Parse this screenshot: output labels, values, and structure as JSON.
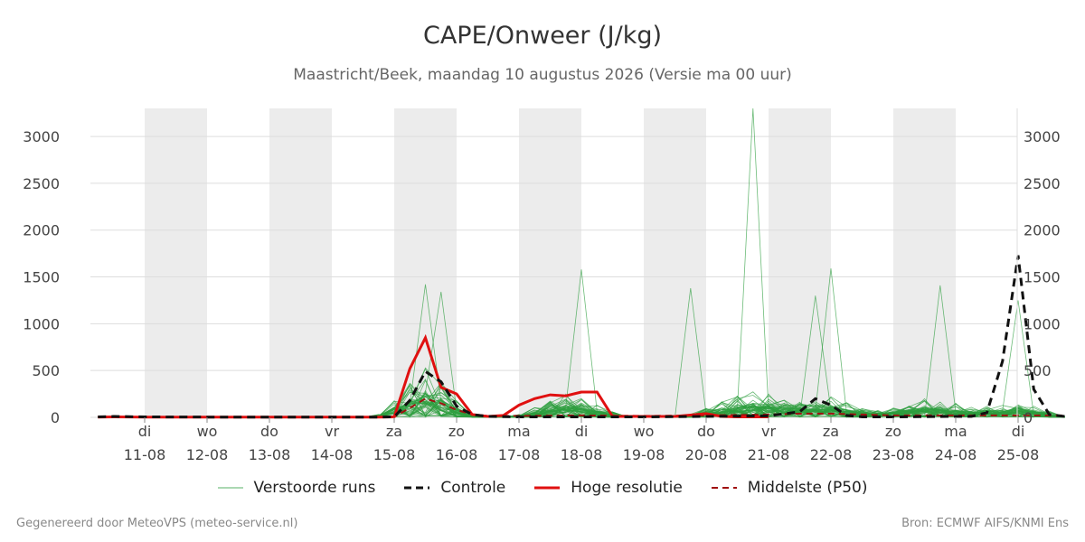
{
  "title": "CAPE/Onweer (J/kg)",
  "subtitle": "Maastricht/Beek, maandag 10 augustus 2026 (Versie ma 00 uur)",
  "footer": {
    "left": "Gegenereerd door MeteoVPS (meteo-service.nl)",
    "right": "Bron: ECMWF AIFS/KNMI Ens"
  },
  "legend": [
    {
      "label": "Verstoorde runs",
      "style": "thin-green"
    },
    {
      "label": "Controle",
      "style": "dashed-black"
    },
    {
      "label": "Hoge resolutie",
      "style": "solid-red"
    },
    {
      "label": "Middelste (P50)",
      "style": "dashed-darkred"
    }
  ],
  "colors": {
    "ensemble": "#2e9e3e",
    "control": "#111111",
    "hires": "#e01010",
    "median": "#a01010",
    "weekend_band": "#ececec",
    "grid": "#dddddd"
  },
  "chart_data": {
    "type": "line",
    "x_unit": "day offset from 10-08-2026 00 UTC",
    "xlim": [
      -0.7,
      14.9
    ],
    "ylim": [
      0,
      3300
    ],
    "yticks": [
      0,
      500,
      1000,
      1500,
      2000,
      2500,
      3000
    ],
    "x_ticks": [
      {
        "day": "di",
        "date": "11-08"
      },
      {
        "day": "wo",
        "date": "12-08"
      },
      {
        "day": "do",
        "date": "13-08"
      },
      {
        "day": "vr",
        "date": "14-08"
      },
      {
        "day": "za",
        "date": "15-08"
      },
      {
        "day": "zo",
        "date": "16-08"
      },
      {
        "day": "ma",
        "date": "17-08"
      },
      {
        "day": "di",
        "date": "18-08"
      },
      {
        "day": "wo",
        "date": "19-08"
      },
      {
        "day": "do",
        "date": "20-08"
      },
      {
        "day": "vr",
        "date": "21-08"
      },
      {
        "day": "za",
        "date": "22-08"
      },
      {
        "day": "zo",
        "date": "23-08"
      },
      {
        "day": "ma",
        "date": "24-08"
      },
      {
        "day": "di",
        "date": "25-08"
      }
    ],
    "shaded_bands": [
      [
        0,
        1
      ],
      [
        2,
        3
      ],
      [
        4,
        5
      ],
      [
        6,
        7
      ],
      [
        8,
        9
      ],
      [
        10,
        11
      ],
      [
        12,
        13
      ]
    ],
    "control": {
      "name": "Controle",
      "x": [
        -0.75,
        -0.5,
        0,
        1,
        2,
        3,
        3.5,
        3.75,
        4,
        4.25,
        4.5,
        4.75,
        5,
        5.25,
        5.5,
        6,
        7,
        8,
        9,
        10,
        10.5,
        10.75,
        11,
        11.25,
        11.5,
        12,
        13,
        13.25,
        13.5,
        13.75,
        14,
        14.25,
        14.5,
        14.75
      ],
      "y": [
        5,
        10,
        5,
        3,
        3,
        3,
        3,
        3,
        5,
        180,
        490,
        380,
        120,
        30,
        10,
        5,
        5,
        5,
        10,
        15,
        60,
        200,
        130,
        20,
        5,
        5,
        10,
        10,
        50,
        600,
        1730,
        300,
        30,
        10
      ]
    },
    "hires": {
      "name": "Hoge resolutie",
      "x": [
        -0.75,
        -0.5,
        0,
        1,
        2,
        3,
        3.5,
        3.75,
        4,
        4.25,
        4.5,
        4.75,
        5,
        5.25,
        5.5,
        5.75,
        6,
        6.25,
        6.5,
        6.75,
        7,
        7.25,
        7.5,
        7.75,
        8,
        8.5,
        9,
        9.25,
        9.5,
        10
      ],
      "y": [
        3,
        5,
        3,
        3,
        3,
        3,
        3,
        3,
        5,
        520,
        850,
        320,
        250,
        30,
        10,
        20,
        130,
        200,
        240,
        230,
        270,
        270,
        10,
        10,
        10,
        10,
        40,
        10,
        5,
        5
      ]
    },
    "median": {
      "name": "Middelste (P50)",
      "x": [
        -0.75,
        0,
        1,
        2,
        3,
        3.5,
        3.75,
        4,
        4.25,
        4.5,
        4.75,
        5,
        5.25,
        5.5,
        6,
        7,
        8,
        9,
        10,
        10.5,
        11,
        11.5,
        12,
        13,
        13.5,
        14,
        14.5,
        14.75
      ],
      "y": [
        5,
        3,
        3,
        3,
        3,
        3,
        3,
        5,
        100,
        200,
        150,
        80,
        30,
        15,
        15,
        20,
        15,
        20,
        30,
        40,
        40,
        30,
        20,
        20,
        20,
        20,
        20,
        20
      ]
    },
    "ensemble_series_count": 50,
    "ensemble_peaks": [
      {
        "x": 4.5,
        "y": 1420
      },
      {
        "x": 4.75,
        "y": 1340
      },
      {
        "x": 7.0,
        "y": 1580
      },
      {
        "x": 8.75,
        "y": 1380
      },
      {
        "x": 9.75,
        "y": 3300
      },
      {
        "x": 10.75,
        "y": 1300
      },
      {
        "x": 11.0,
        "y": 1590
      },
      {
        "x": 12.75,
        "y": 1410
      },
      {
        "x": 14.0,
        "y": 1250
      }
    ]
  }
}
